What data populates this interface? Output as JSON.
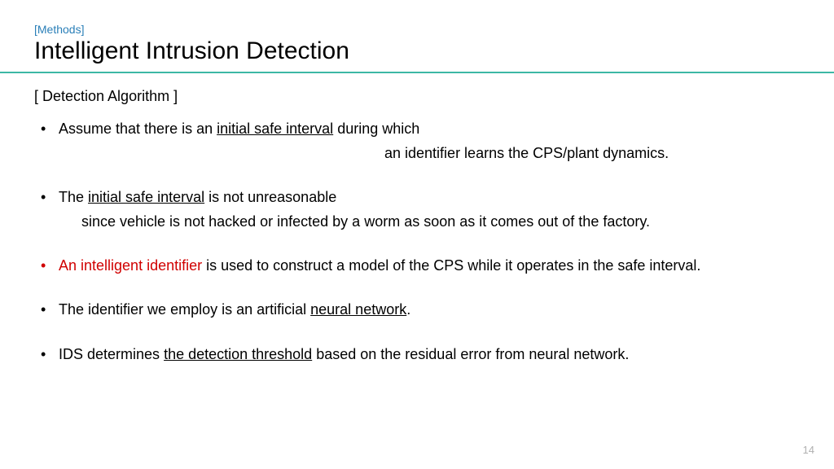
{
  "header": {
    "section_tag": "[Methods]",
    "title": "Intelligent Intrusion Detection"
  },
  "content": {
    "subtitle": "[ Detection Algorithm ]",
    "bullets": [
      {
        "line1a": "Assume that there is an ",
        "line1u": "initial safe interval",
        "line1b": " during which",
        "line2": "an identifier learns the CPS/plant dynamics."
      },
      {
        "line1a": "The ",
        "line1u": "initial safe interval",
        "line1b": " is not unreasonable",
        "line2": "since vehicle is not hacked or infected by a worm as soon as it comes out of the factory."
      },
      {
        "red_text": "An intelligent identifier",
        "rest": " is used to construct a model of the CPS while it operates in the safe interval."
      },
      {
        "line1a": "The identifier we employ is an artificial ",
        "line1u": "neural network",
        "line1b": "."
      },
      {
        "line1a": "IDS determines ",
        "line1u": "the detection threshold",
        "line1b": " based on the residual error from neural network."
      }
    ]
  },
  "page_number": "14",
  "colors": {
    "accent_line": "#3db8a5",
    "tag_color": "#2a7fb8",
    "red": "#d00000",
    "pagenum": "#b0b0b0"
  }
}
